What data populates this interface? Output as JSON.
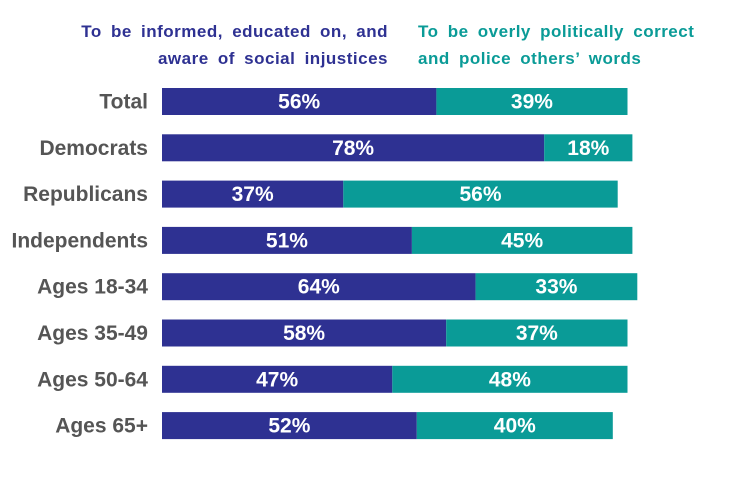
{
  "colors": {
    "series1": "#2e3192",
    "series2": "#0a9b97",
    "category_text": "#555555",
    "value_text": "#ffffff"
  },
  "legend": {
    "series1_line1": "To be informed, educated on, and",
    "series1_line2": "aware of social injustices",
    "series2_line1": "To be overly politically correct",
    "series2_line2": "and police others’ words"
  },
  "chart_data": {
    "type": "bar",
    "orientation": "horizontal",
    "stacked": true,
    "categories": [
      "Total",
      "Democrats",
      "Republicans",
      "Independents",
      "Ages 18-34",
      "Ages 35-49",
      "Ages 50-64",
      "Ages 65+"
    ],
    "series": [
      {
        "name": "To be informed, educated on, and aware of social injustices",
        "values": [
          56,
          78,
          37,
          51,
          64,
          58,
          47,
          52
        ],
        "labels": [
          "56%",
          "78%",
          "37%",
          "51%",
          "64%",
          "58%",
          "47%",
          "52%"
        ]
      },
      {
        "name": "To be overly politically correct and police others’ words",
        "values": [
          39,
          18,
          56,
          45,
          33,
          37,
          48,
          40
        ],
        "labels": [
          "39%",
          "18%",
          "56%",
          "45%",
          "33%",
          "37%",
          "48%",
          "40%"
        ]
      }
    ],
    "legend_position": "top",
    "grid": false
  }
}
